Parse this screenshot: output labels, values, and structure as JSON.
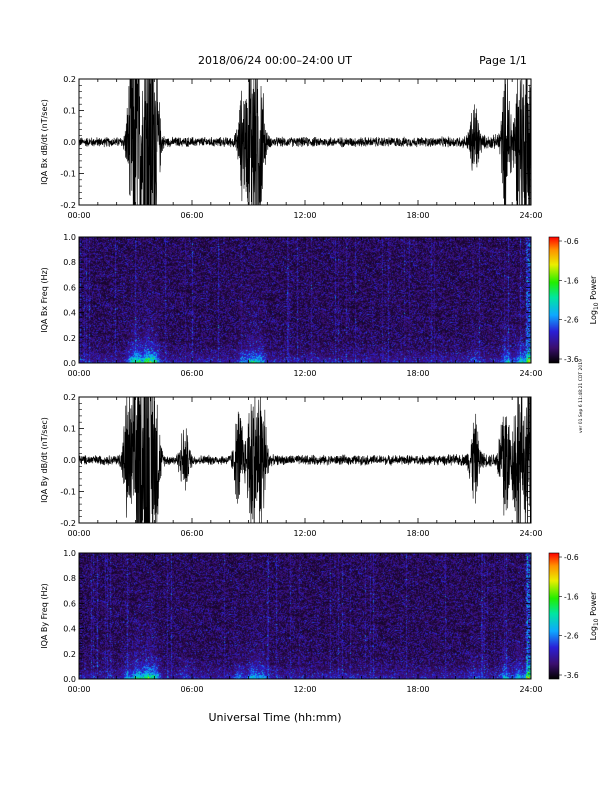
{
  "header": {
    "title": "2018/06/24  00:00–24:00 UT",
    "page": "Page 1/1"
  },
  "footer": {
    "xlabel": "Universal Time (hh:mm)"
  },
  "side_note": "ver 01 Sep 6 11:48:21 CDT 2019",
  "colorbar": {
    "label_prefix": "Log",
    "label_sub": "10",
    "label_suffix": " Power",
    "ticks": [
      "-0.6",
      "-1.6",
      "-2.6",
      "-3.6"
    ],
    "range": [
      -3.6,
      -0.6
    ]
  },
  "x_ticks": [
    "00:00",
    "06:00",
    "12:00",
    "18:00",
    "24:00"
  ],
  "chart_data": [
    {
      "type": "line",
      "ylabel": "IQA Bx dB/dt (nT/sec)",
      "x_range_hours": [
        0,
        24
      ],
      "ylim": [
        -0.2,
        0.2
      ],
      "yticks": [
        "-0.2",
        "-0.1",
        "0.0",
        "0.1",
        "0.2"
      ],
      "activity_bursts": [
        {
          "t": 2.8,
          "amp": 0.3
        },
        {
          "t": 3.1,
          "amp": 0.45
        },
        {
          "t": 3.6,
          "amp": 0.6
        },
        {
          "t": 4.0,
          "amp": 0.45
        },
        {
          "t": 8.7,
          "amp": 0.2
        },
        {
          "t": 9.2,
          "amp": 0.4
        },
        {
          "t": 9.6,
          "amp": 0.3
        },
        {
          "t": 21.0,
          "amp": 0.15
        },
        {
          "t": 22.7,
          "amp": 0.3
        },
        {
          "t": 23.4,
          "amp": 0.35
        },
        {
          "t": 23.9,
          "amp": 0.5
        }
      ]
    },
    {
      "type": "heatmap",
      "ylabel": "IQA Bx Freq (Hz)",
      "x_range_hours": [
        0,
        24
      ],
      "ylim": [
        0.0,
        1.0
      ],
      "yticks": [
        "0.0",
        "0.2",
        "0.4",
        "0.6",
        "0.8",
        "1.0"
      ],
      "zlim": [
        -3.6,
        -0.6
      ]
    },
    {
      "type": "line",
      "ylabel": "IQA By dB/dt (nT/sec)",
      "x_range_hours": [
        0,
        24
      ],
      "ylim": [
        -0.2,
        0.2
      ],
      "yticks": [
        "-0.2",
        "-0.1",
        "0.0",
        "0.1",
        "0.2"
      ],
      "activity_bursts": [
        {
          "t": 2.6,
          "amp": 0.25
        },
        {
          "t": 3.1,
          "amp": 0.45
        },
        {
          "t": 3.6,
          "amp": 0.55
        },
        {
          "t": 4.0,
          "amp": 0.4
        },
        {
          "t": 5.6,
          "amp": 0.12
        },
        {
          "t": 8.5,
          "amp": 0.2
        },
        {
          "t": 9.2,
          "amp": 0.35
        },
        {
          "t": 9.7,
          "amp": 0.3
        },
        {
          "t": 21.0,
          "amp": 0.15
        },
        {
          "t": 22.6,
          "amp": 0.3
        },
        {
          "t": 23.3,
          "amp": 0.35
        },
        {
          "t": 23.9,
          "amp": 0.5
        }
      ]
    },
    {
      "type": "heatmap",
      "ylabel": "IQA By Freq (Hz)",
      "x_range_hours": [
        0,
        24
      ],
      "ylim": [
        0.0,
        1.0
      ],
      "yticks": [
        "0.0",
        "0.2",
        "0.4",
        "0.6",
        "0.8",
        "1.0"
      ],
      "zlim": [
        -3.6,
        -0.6
      ]
    }
  ]
}
